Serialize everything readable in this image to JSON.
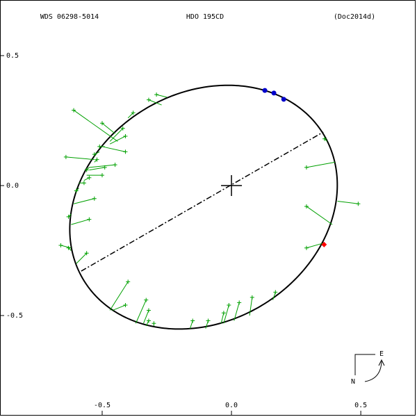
{
  "chart_data": {
    "type": "orbit",
    "title": "WDS 06298-5014",
    "subtitle": "HDO 195CD",
    "reference": "(Doc2014d)",
    "compass_east": "E",
    "compass_north": "N",
    "xlim": [
      -0.895,
      0.712
    ],
    "ylim": [
      -0.885,
      0.714
    ],
    "xticks": [
      -0.5,
      {
        "value": 0,
        "label": "0.0"
      },
      0.5
    ],
    "yticks": [
      0.5,
      {
        "value": 0,
        "label": "0.0"
      },
      -0.5
    ],
    "grid": false,
    "orbit": {
      "color": "#000000",
      "center_x": -0.108,
      "center_y": -0.083,
      "semi_major": 0.542,
      "semi_minor": 0.44,
      "angle": 30.8
    },
    "line_of_nodes": {
      "x": [
        -0.581,
        0.355
      ],
      "y": [
        -0.329,
        0.206
      ]
    },
    "primary": {
      "x": 0,
      "y": 0
    },
    "recent": {
      "color": "#0000cc",
      "x": [
        0.129,
        0.164,
        0.202
      ],
      "y": [
        0.366,
        0.356,
        0.332
      ]
    },
    "latest": {
      "color": "#ff0000",
      "x": 0.358,
      "y": -0.227
    },
    "observations": {
      "color": "#00a000",
      "x": [
        -0.29,
        -0.32,
        -0.61,
        -0.5,
        -0.38,
        -0.42,
        -0.41,
        -0.51,
        -0.53,
        -0.41,
        -0.64,
        -0.52,
        -0.45,
        -0.56,
        -0.49,
        -0.55,
        -0.5,
        -0.57,
        -0.6,
        -0.53,
        -0.55,
        -0.63,
        -0.66,
        -0.63,
        -0.56,
        -0.4,
        -0.41,
        -0.33,
        -0.32,
        -0.32,
        -0.3,
        -0.15,
        -0.09,
        -0.03,
        -0.01,
        0.03,
        0.08,
        0.17,
        0.36,
        0.29,
        0.49,
        0.29,
        0.29
      ],
      "y": [
        0.35,
        0.33,
        0.29,
        0.24,
        0.28,
        0.22,
        0.19,
        0.15,
        0.12,
        0.13,
        0.11,
        0.1,
        0.08,
        0.06,
        0.07,
        0.03,
        0.04,
        0.01,
        -0.02,
        -0.05,
        -0.13,
        -0.12,
        -0.23,
        -0.24,
        -0.26,
        -0.37,
        -0.46,
        -0.44,
        -0.48,
        -0.52,
        -0.53,
        -0.52,
        -0.52,
        -0.49,
        -0.46,
        -0.45,
        -0.43,
        -0.41,
        0.18,
        0.07,
        -0.07,
        -0.08,
        -0.24
      ],
      "orbit_x": [
        -0.25,
        -0.27,
        -0.44,
        -0.45,
        -0.4,
        -0.47,
        -0.47,
        -0.49,
        -0.51,
        -0.5,
        -0.53,
        -0.53,
        -0.55,
        -0.55,
        -0.55,
        -0.57,
        -0.56,
        -0.59,
        -0.59,
        -0.61,
        -0.62,
        -0.62,
        -0.62,
        -0.62,
        -0.6,
        -0.47,
        -0.46,
        -0.37,
        -0.34,
        -0.33,
        -0.3,
        -0.16,
        -0.1,
        -0.04,
        -0.03,
        0.01,
        0.07,
        0.16,
        0.37,
        0.4,
        0.41,
        0.39,
        0.36
      ],
      "orbit_y": [
        0.34,
        0.31,
        0.17,
        0.2,
        0.26,
        0.17,
        0.16,
        0.15,
        0.13,
        0.15,
        0.1,
        0.09,
        0.07,
        0.07,
        0.06,
        0.02,
        0.04,
        0.01,
        -0.01,
        -0.07,
        -0.15,
        -0.11,
        -0.24,
        -0.25,
        -0.3,
        -0.48,
        -0.48,
        -0.53,
        -0.53,
        -0.54,
        -0.54,
        -0.55,
        -0.55,
        -0.53,
        -0.53,
        -0.52,
        -0.5,
        -0.44,
        0.17,
        0.09,
        -0.06,
        -0.15,
        -0.22
      ]
    }
  }
}
